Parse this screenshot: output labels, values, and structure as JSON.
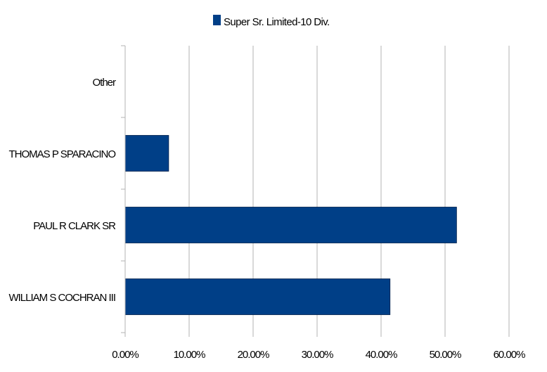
{
  "chart_data": {
    "type": "bar",
    "orientation": "horizontal",
    "categories": [
      "Other",
      "THOMAS P SPARACINO",
      "PAUL R CLARK SR",
      "WILLIAM S COCHRAN III"
    ],
    "series": [
      {
        "name": "Super Sr. Limited-10 Div.",
        "values": [
          0,
          6.8,
          51.8,
          41.4
        ],
        "color": "#003f87"
      }
    ],
    "xlim": [
      0,
      60
    ],
    "x_ticks": [
      "0.00%",
      "10.00%",
      "20.00%",
      "30.00%",
      "40.00%",
      "50.00%",
      "60.00%"
    ],
    "grid": true,
    "legend_position": "top"
  }
}
